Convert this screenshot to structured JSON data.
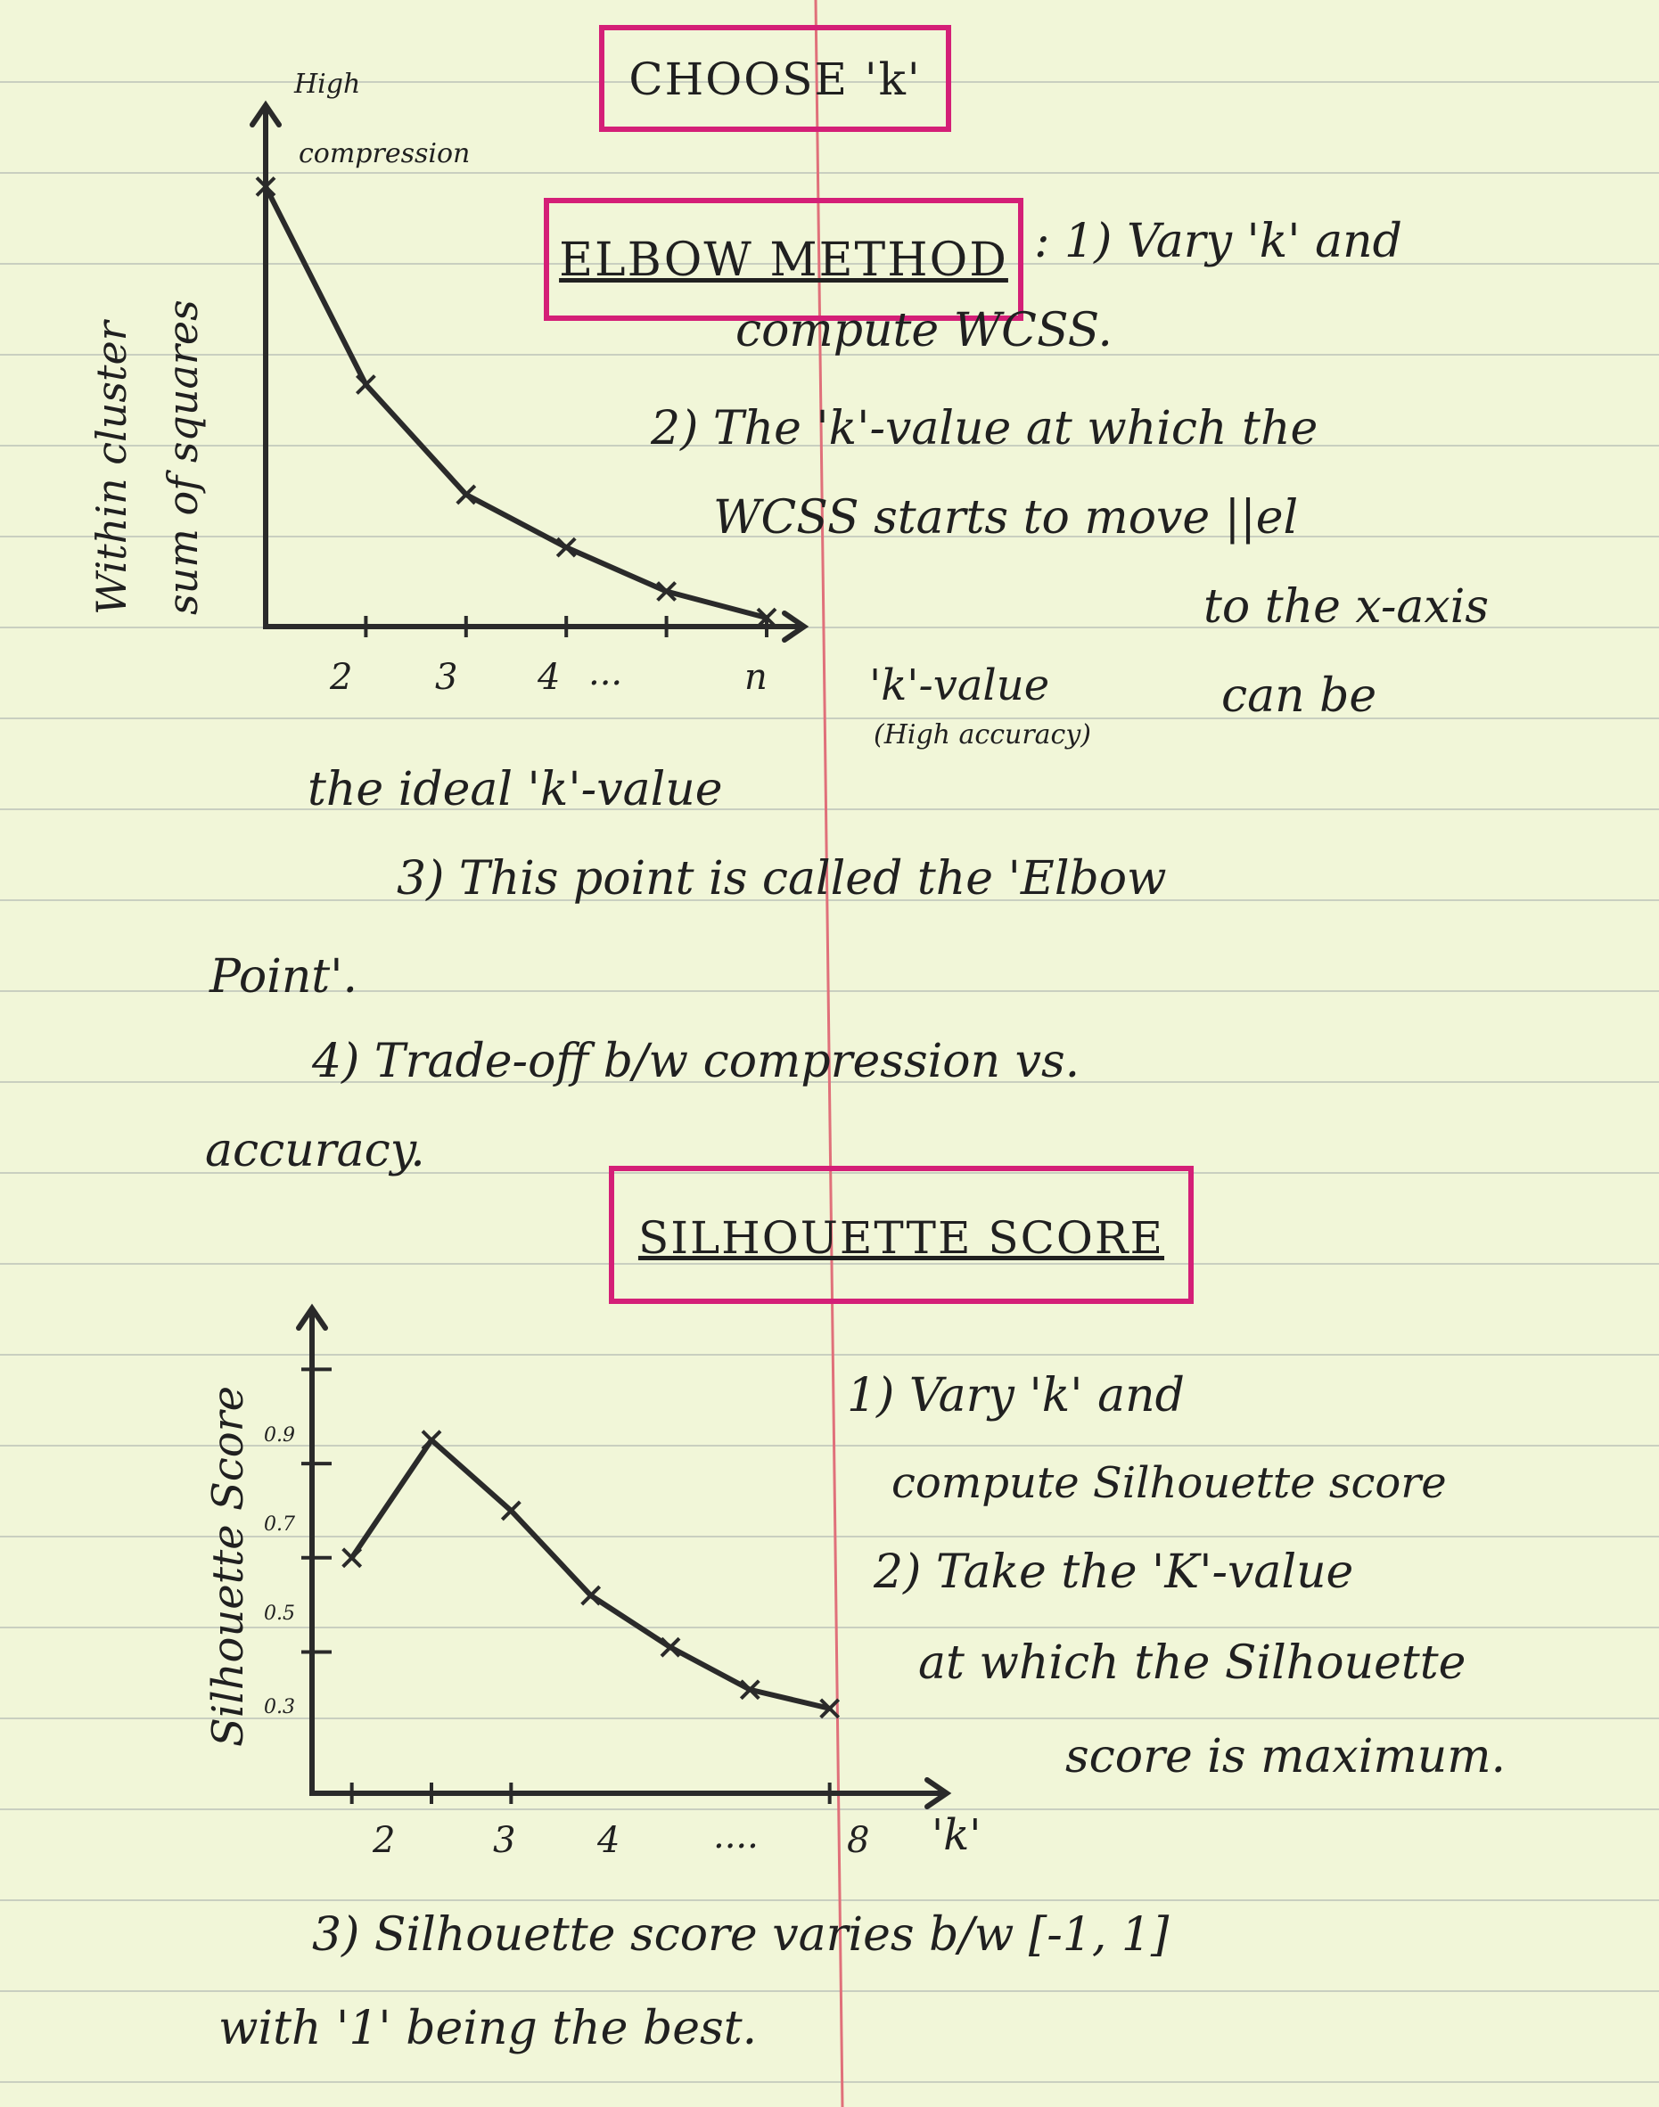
{
  "title": "CHOOSE 'k'",
  "elbow": {
    "heading": "ELBOW METHOD",
    "lines": [
      ": 1) Vary 'k' and",
      "compute WCSS.",
      "2) The 'k'-value at which the",
      "WCSS starts to move ||el",
      "to the x-axis",
      "can be",
      "the ideal 'k'-value",
      "3) This point is called the 'Elbow",
      "Point'.",
      "4) Trade-off b/w compression vs.",
      "accuracy."
    ],
    "chart": {
      "y_axis_label_line1": "Within cluster",
      "y_axis_label_line2": "sum of squares",
      "top_label_line1": "High",
      "top_label_line2": "compression",
      "x_axis_label": "'k'-value",
      "bottom_label": "(High accuracy)",
      "x_ticks": [
        "2",
        "3",
        "4",
        "...",
        "n"
      ]
    }
  },
  "silhouette": {
    "heading": "SILHOUETTE SCORE",
    "lines": [
      "1) Vary 'k' and",
      "compute Silhouette score",
      "2) Take the 'K'-value",
      "at which the Silhouette",
      "score is maximum.",
      "3) Silhouette score varies b/w [-1, 1]",
      "with '1' being the best."
    ],
    "chart": {
      "y_axis_label": "Silhouette Score",
      "x_axis_label": "'k'",
      "x_ticks": [
        "2",
        "3",
        "4",
        "....",
        "8"
      ],
      "y_ticks": [
        "0.9",
        "0.7",
        "0.5",
        "0.3"
      ]
    }
  },
  "colors": {
    "box_border": "#d41f77",
    "margin_line": "#e0707a",
    "rule_line": "#c9cfc0",
    "ink": "#2a2a2a",
    "paper": "#f1f6d8"
  },
  "chart_data": [
    {
      "type": "line",
      "series": [
        {
          "x": [
            1,
            2,
            3,
            4,
            5,
            6
          ],
          "y": [
            100,
            55,
            30,
            18,
            8,
            2
          ]
        }
      ],
      "xlabel": "'k'-value",
      "ylabel": "Within cluster sum of squares",
      "x_tick_labels": [
        "2",
        "3",
        "4",
        "...",
        "n"
      ],
      "xlim": [
        1,
        6
      ],
      "ylim": [
        0,
        110
      ]
    },
    {
      "type": "line",
      "series": [
        {
          "x": [
            2,
            3,
            4,
            5,
            6,
            7,
            8
          ],
          "y": [
            0.5,
            0.75,
            0.6,
            0.42,
            0.31,
            0.22,
            0.18
          ]
        }
      ],
      "xlabel": "'k'",
      "ylabel": "Silhouette Score",
      "x_tick_labels": [
        "2",
        "3",
        "4",
        "....",
        "8"
      ],
      "y_tick_labels": [
        "0.3",
        "0.5",
        "0.7",
        "0.9"
      ],
      "xlim": [
        1.5,
        9
      ],
      "ylim": [
        0,
        0.95
      ]
    }
  ]
}
